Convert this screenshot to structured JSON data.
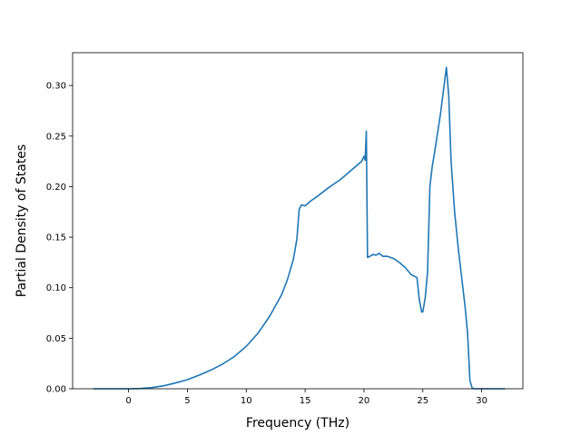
{
  "chart_data": {
    "type": "line",
    "xlabel": "Frequency (THz)",
    "ylabel": "Partial Density of States",
    "xlim": [
      -4.75,
      33.5
    ],
    "ylim": [
      0,
      0.3325
    ],
    "xticks": [
      0,
      5,
      10,
      15,
      20,
      25,
      30
    ],
    "xtick_labels": [
      "0",
      "5",
      "10",
      "15",
      "20",
      "25",
      "30"
    ],
    "yticks": [
      0.0,
      0.05,
      0.1,
      0.15,
      0.2,
      0.25,
      0.3
    ],
    "ytick_labels": [
      "0.00",
      "0.05",
      "0.10",
      "0.15",
      "0.20",
      "0.25",
      "0.30"
    ],
    "grid": false,
    "line_color": "#1f77b4",
    "series": [
      {
        "x": [
          -3,
          -2,
          -1,
          0,
          1,
          2,
          3,
          4,
          5,
          6,
          7,
          8,
          9,
          10,
          11,
          12,
          13,
          13.5,
          14,
          14.3,
          14.5,
          14.7,
          15,
          15.5,
          16,
          17,
          18,
          19,
          19.5,
          19.8,
          20.0,
          20.1,
          20.2,
          20.3,
          20.5,
          20.8,
          21.0,
          21.3,
          21.6,
          22,
          22.5,
          23,
          23.5,
          24,
          24.5,
          24.7,
          24.9,
          25.0,
          25.2,
          25.4,
          25.6,
          25.8,
          26.0,
          26.5,
          27.0,
          27.2,
          27.4,
          27.7,
          28.0,
          28.3,
          28.6,
          28.8,
          29.0,
          29.2,
          29.4,
          30,
          31,
          32
        ],
        "y": [
          0.0,
          0.0,
          0.0,
          0.0,
          0.0003,
          0.0012,
          0.003,
          0.0058,
          0.009,
          0.0135,
          0.0185,
          0.0245,
          0.032,
          0.042,
          0.055,
          0.072,
          0.093,
          0.108,
          0.128,
          0.148,
          0.178,
          0.182,
          0.181,
          0.186,
          0.19,
          0.199,
          0.207,
          0.217,
          0.222,
          0.225,
          0.23,
          0.226,
          0.255,
          0.13,
          0.131,
          0.133,
          0.132,
          0.134,
          0.131,
          0.131,
          0.129,
          0.125,
          0.12,
          0.113,
          0.11,
          0.088,
          0.076,
          0.076,
          0.09,
          0.115,
          0.2,
          0.22,
          0.234,
          0.272,
          0.318,
          0.29,
          0.225,
          0.175,
          0.14,
          0.11,
          0.08,
          0.055,
          0.008,
          0.0005,
          0.0,
          0.0,
          0.0,
          0.0
        ]
      }
    ]
  }
}
